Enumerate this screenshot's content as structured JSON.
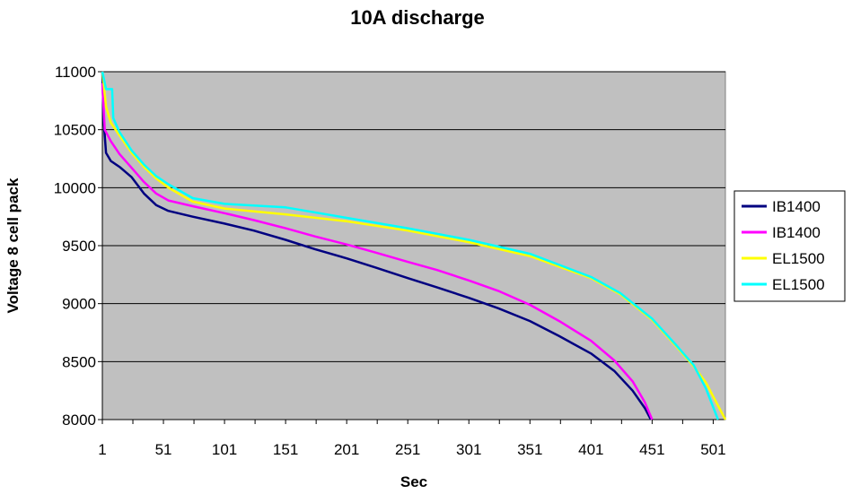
{
  "chart_data": {
    "type": "line",
    "title": "10A discharge",
    "xlabel": "Sec",
    "ylabel": "Voltage 8 cell pack",
    "xlim": [
      1,
      511
    ],
    "ylim": [
      8000,
      11000
    ],
    "xticks": [
      1,
      51,
      101,
      151,
      201,
      251,
      301,
      351,
      401,
      451,
      501
    ],
    "yticks": [
      8000,
      8500,
      9000,
      9500,
      10000,
      10500,
      11000
    ],
    "grid": "horizontal",
    "legend_position": "right",
    "plot_background": "#c0c0c0",
    "series": [
      {
        "name": "IB1400",
        "color": "#000080",
        "points": [
          [
            1,
            11000
          ],
          [
            2,
            10580
          ],
          [
            4,
            10300
          ],
          [
            8,
            10230
          ],
          [
            15,
            10180
          ],
          [
            25,
            10090
          ],
          [
            35,
            9950
          ],
          [
            45,
            9850
          ],
          [
            55,
            9800
          ],
          [
            75,
            9750
          ],
          [
            101,
            9690
          ],
          [
            125,
            9630
          ],
          [
            151,
            9550
          ],
          [
            175,
            9470
          ],
          [
            201,
            9390
          ],
          [
            225,
            9310
          ],
          [
            251,
            9220
          ],
          [
            275,
            9140
          ],
          [
            301,
            9050
          ],
          [
            325,
            8960
          ],
          [
            351,
            8850
          ],
          [
            375,
            8720
          ],
          [
            401,
            8570
          ],
          [
            420,
            8420
          ],
          [
            435,
            8250
          ],
          [
            445,
            8100
          ],
          [
            450,
            8000
          ]
        ]
      },
      {
        "name": "IB1400",
        "color": "#ff00ff",
        "points": [
          [
            1,
            10900
          ],
          [
            3,
            10500
          ],
          [
            8,
            10400
          ],
          [
            15,
            10290
          ],
          [
            25,
            10170
          ],
          [
            35,
            10050
          ],
          [
            45,
            9950
          ],
          [
            55,
            9890
          ],
          [
            75,
            9840
          ],
          [
            101,
            9780
          ],
          [
            125,
            9720
          ],
          [
            151,
            9650
          ],
          [
            175,
            9580
          ],
          [
            201,
            9510
          ],
          [
            225,
            9440
          ],
          [
            251,
            9360
          ],
          [
            275,
            9290
          ],
          [
            301,
            9200
          ],
          [
            325,
            9110
          ],
          [
            351,
            8990
          ],
          [
            375,
            8850
          ],
          [
            401,
            8680
          ],
          [
            420,
            8510
          ],
          [
            435,
            8330
          ],
          [
            445,
            8150
          ],
          [
            451,
            8000
          ]
        ]
      },
      {
        "name": "EL1500",
        "color": "#ffff00",
        "points": [
          [
            1,
            11000
          ],
          [
            4,
            10700
          ],
          [
            8,
            10560
          ],
          [
            15,
            10450
          ],
          [
            25,
            10300
          ],
          [
            35,
            10180
          ],
          [
            45,
            10080
          ],
          [
            55,
            10000
          ],
          [
            75,
            9880
          ],
          [
            101,
            9820
          ],
          [
            151,
            9770
          ],
          [
            201,
            9710
          ],
          [
            251,
            9630
          ],
          [
            301,
            9530
          ],
          [
            351,
            9410
          ],
          [
            401,
            9220
          ],
          [
            425,
            9080
          ],
          [
            451,
            8860
          ],
          [
            470,
            8640
          ],
          [
            485,
            8460
          ],
          [
            495,
            8320
          ],
          [
            505,
            8120
          ],
          [
            511,
            8000
          ]
        ]
      },
      {
        "name": "EL1500",
        "color": "#00ffff",
        "points": [
          [
            1,
            11000
          ],
          [
            4,
            10850
          ],
          [
            6,
            10850
          ],
          [
            9,
            10850
          ],
          [
            10,
            10600
          ],
          [
            15,
            10480
          ],
          [
            25,
            10320
          ],
          [
            35,
            10200
          ],
          [
            45,
            10100
          ],
          [
            55,
            10030
          ],
          [
            75,
            9910
          ],
          [
            101,
            9860
          ],
          [
            151,
            9830
          ],
          [
            201,
            9740
          ],
          [
            251,
            9650
          ],
          [
            301,
            9550
          ],
          [
            351,
            9430
          ],
          [
            401,
            9230
          ],
          [
            425,
            9090
          ],
          [
            451,
            8870
          ],
          [
            470,
            8650
          ],
          [
            485,
            8470
          ],
          [
            495,
            8270
          ],
          [
            505,
            8000
          ]
        ]
      }
    ]
  }
}
